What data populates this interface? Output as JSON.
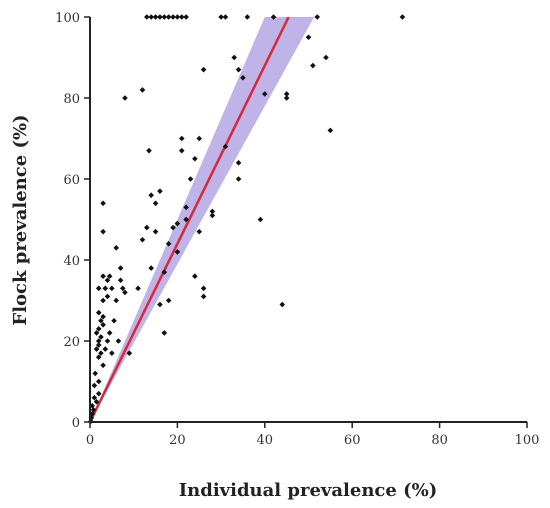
{
  "chart_data": {
    "type": "scatter",
    "xlabel": "Individual prevalence (%)",
    "ylabel": "Flock prevalence (%)",
    "xlim": [
      0,
      100
    ],
    "ylim": [
      0,
      100
    ],
    "x_ticks": [
      0,
      20,
      40,
      60,
      80,
      100
    ],
    "y_ticks": [
      0,
      20,
      40,
      60,
      80,
      100
    ],
    "grid": false,
    "colors": {
      "points": "#111111",
      "fit_line": "#d42a3a",
      "band": "#a99ae0"
    },
    "fit_line": {
      "slope": 2.2,
      "intercept": 0
    },
    "confidence_band": {
      "slope_low": 1.95,
      "slope_high": 2.5
    },
    "points": [
      [
        0.2,
        0.2
      ],
      [
        0.3,
        1
      ],
      [
        0.5,
        2
      ],
      [
        0.5,
        4
      ],
      [
        0.8,
        3
      ],
      [
        1,
        6
      ],
      [
        1,
        9
      ],
      [
        1.2,
        12
      ],
      [
        1.5,
        5
      ],
      [
        1.5,
        18
      ],
      [
        1.5,
        22
      ],
      [
        2,
        7
      ],
      [
        2,
        10
      ],
      [
        2,
        16
      ],
      [
        2,
        19
      ],
      [
        2,
        20
      ],
      [
        2,
        23
      ],
      [
        2,
        27
      ],
      [
        2,
        33
      ],
      [
        2.5,
        17
      ],
      [
        2.5,
        21
      ],
      [
        2.5,
        25
      ],
      [
        3,
        14
      ],
      [
        3,
        24
      ],
      [
        3,
        26
      ],
      [
        3,
        30
      ],
      [
        3,
        36
      ],
      [
        3,
        47
      ],
      [
        3,
        54
      ],
      [
        3.5,
        18
      ],
      [
        3.5,
        33
      ],
      [
        4,
        20
      ],
      [
        4,
        31
      ],
      [
        4,
        35
      ],
      [
        4.5,
        22
      ],
      [
        4.5,
        36
      ],
      [
        5,
        17
      ],
      [
        5,
        33
      ],
      [
        5.5,
        25
      ],
      [
        6,
        30
      ],
      [
        6,
        43
      ],
      [
        6.5,
        20
      ],
      [
        7,
        35
      ],
      [
        7,
        38
      ],
      [
        7.5,
        33
      ],
      [
        8,
        32
      ],
      [
        8,
        80
      ],
      [
        9,
        17
      ],
      [
        11,
        33
      ],
      [
        12,
        45
      ],
      [
        12,
        82
      ],
      [
        13,
        48
      ],
      [
        13.5,
        67
      ],
      [
        14,
        38
      ],
      [
        14,
        56
      ],
      [
        15,
        47
      ],
      [
        15,
        54
      ],
      [
        16,
        29
      ],
      [
        16,
        57
      ],
      [
        17,
        22
      ],
      [
        17,
        37
      ],
      [
        18,
        30
      ],
      [
        18,
        44
      ],
      [
        19,
        48
      ],
      [
        20,
        42
      ],
      [
        20,
        49
      ],
      [
        21,
        67
      ],
      [
        21,
        70
      ],
      [
        22,
        50
      ],
      [
        22,
        53
      ],
      [
        23,
        60
      ],
      [
        24,
        36
      ],
      [
        24,
        65
      ],
      [
        25,
        70
      ],
      [
        25,
        47
      ],
      [
        26,
        31
      ],
      [
        26,
        33
      ],
      [
        26,
        87
      ],
      [
        28,
        51
      ],
      [
        28,
        52
      ],
      [
        30,
        100
      ],
      [
        31,
        68
      ],
      [
        31,
        100
      ],
      [
        33,
        90
      ],
      [
        34,
        87
      ],
      [
        34,
        60
      ],
      [
        34,
        64
      ],
      [
        35,
        85
      ],
      [
        36,
        100
      ],
      [
        39,
        50
      ],
      [
        40,
        81
      ],
      [
        42,
        100
      ],
      [
        44,
        29
      ],
      [
        45,
        80
      ],
      [
        45,
        81
      ],
      [
        50,
        95
      ],
      [
        51,
        88
      ],
      [
        52,
        100
      ],
      [
        54,
        90
      ],
      [
        55,
        72
      ],
      [
        71.5,
        100
      ],
      [
        13,
        100
      ],
      [
        14,
        100
      ],
      [
        15,
        100
      ],
      [
        16,
        100
      ],
      [
        17,
        100
      ],
      [
        18,
        100
      ],
      [
        19,
        100
      ],
      [
        20,
        100
      ],
      [
        21,
        100
      ],
      [
        22,
        100
      ]
    ]
  }
}
